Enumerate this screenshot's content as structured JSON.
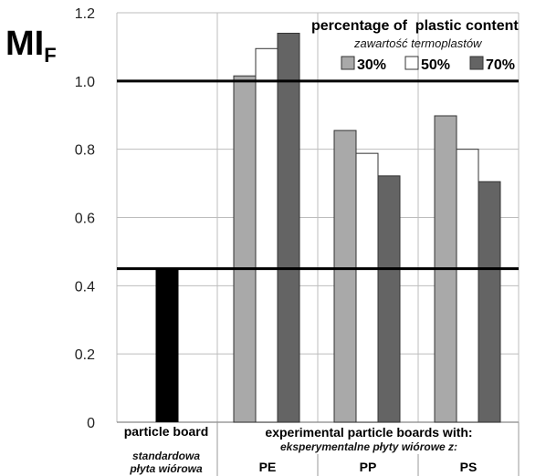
{
  "chart_data": {
    "type": "bar",
    "ylabel_main": "MI",
    "ylabel_sub": "F",
    "ylim": [
      0,
      1.2
    ],
    "yticks": [
      "0",
      "0.2",
      "0.4",
      "0.6",
      "0.8",
      "1.0",
      "1.2"
    ],
    "ytick_values": [
      0,
      0.2,
      0.4,
      0.6,
      0.8,
      1.0,
      1.2
    ],
    "grid": "horizontal",
    "legend": {
      "position": "top-right",
      "title": "percentage of  plastic content",
      "subtitle": "zawartość termoplastów",
      "entries": [
        {
          "label": "30%",
          "color": "#a9a9a9"
        },
        {
          "label": "50%",
          "color": "#ffffff"
        },
        {
          "label": "70%",
          "color": "#646464"
        }
      ]
    },
    "reference_lines": [
      1.0,
      0.45
    ],
    "reference": {
      "label": "particle board",
      "sublabel_line1": "standardowa",
      "sublabel_line2": "płyta wiórowa",
      "value": 0.45,
      "color": "#000000"
    },
    "group_header": "experimental particle boards with:",
    "group_header_sub": "eksperymentalne płyty wiórowe z:",
    "categories": [
      "PE",
      "PP",
      "PS"
    ],
    "series": [
      {
        "name": "30%",
        "values": [
          1.015,
          0.855,
          0.898
        ]
      },
      {
        "name": "50%",
        "values": [
          1.095,
          0.788,
          0.8
        ]
      },
      {
        "name": "70%",
        "values": [
          1.14,
          0.722,
          0.705
        ]
      }
    ]
  }
}
